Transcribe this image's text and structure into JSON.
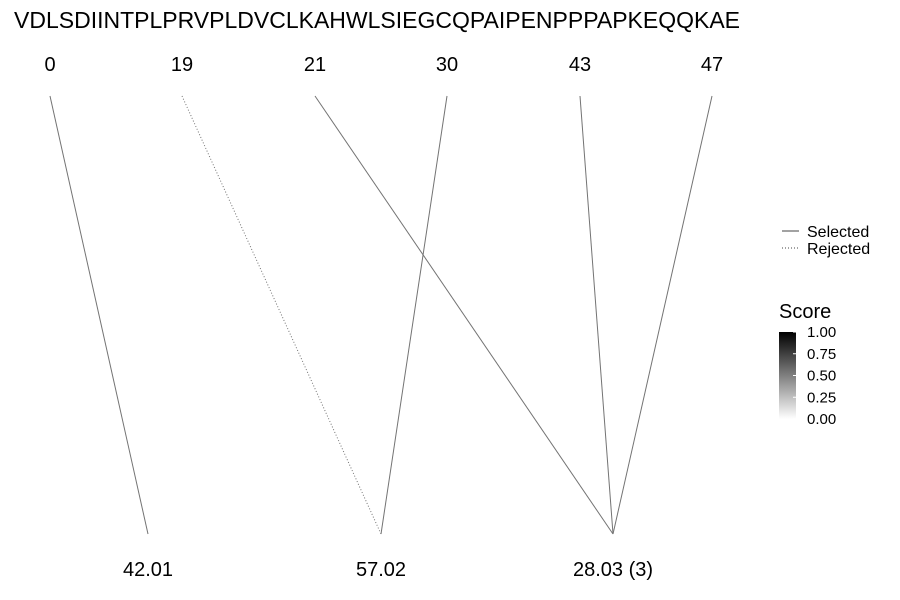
{
  "chart_data": {
    "type": "diagram",
    "sequence": "VDLSDIINTPLPRVPLDVCLKAHWLSIEGCQPAIPENPPPAPKEQQKAE",
    "top_positions": [
      "0",
      "19",
      "21",
      "30",
      "43",
      "47"
    ],
    "bottom_labels": [
      "42.01",
      "57.02",
      "28.03 (3)"
    ],
    "links": [
      {
        "from": "0",
        "to": "42.01",
        "status": "Selected",
        "score": 0.55
      },
      {
        "from": "19",
        "to": "57.02",
        "status": "Rejected",
        "score": 0.55
      },
      {
        "from": "21",
        "to": "28.03 (3)",
        "status": "Selected",
        "score": 0.55
      },
      {
        "from": "30",
        "to": "57.02",
        "status": "Selected",
        "score": 0.55
      },
      {
        "from": "43",
        "to": "28.03 (3)",
        "status": "Selected",
        "score": 0.55
      },
      {
        "from": "47",
        "to": "28.03 (3)",
        "status": "Selected",
        "score": 0.55
      }
    ],
    "legend": {
      "line_types": [
        {
          "label": "Selected",
          "style": "solid"
        },
        {
          "label": "Rejected",
          "style": "dotted"
        }
      ],
      "score_title": "Score",
      "score_ticks": [
        "1.00",
        "0.75",
        "0.50",
        "0.25",
        "0.00"
      ],
      "score_range": [
        0,
        1
      ],
      "colors": {
        "low": "#ffffff",
        "high": "#000000"
      },
      "placement": "right"
    }
  }
}
